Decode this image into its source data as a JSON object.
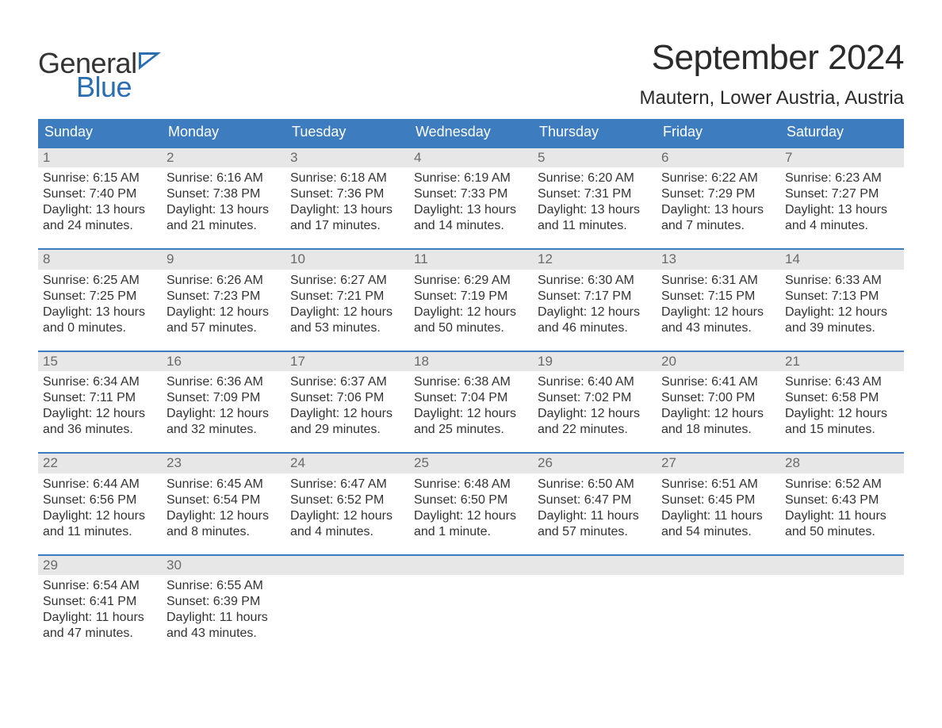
{
  "logo": {
    "word1": "General",
    "word2": "Blue",
    "icon_color": "#2a6db3"
  },
  "title": "September 2024",
  "location": "Mautern, Lower Austria, Austria",
  "colors": {
    "header_bg": "#3d7cbf",
    "header_text": "#ffffff",
    "daynum_bg": "#e7e7e7",
    "daynum_text": "#6a6a6a",
    "row_border": "#3d7cbf",
    "body_text": "#333333"
  },
  "weekdays": [
    "Sunday",
    "Monday",
    "Tuesday",
    "Wednesday",
    "Thursday",
    "Friday",
    "Saturday"
  ],
  "first_weekday_offset": 0,
  "days": [
    {
      "n": 1,
      "sunrise": "6:15 AM",
      "sunset": "7:40 PM",
      "daylight": "13 hours and 24 minutes."
    },
    {
      "n": 2,
      "sunrise": "6:16 AM",
      "sunset": "7:38 PM",
      "daylight": "13 hours and 21 minutes."
    },
    {
      "n": 3,
      "sunrise": "6:18 AM",
      "sunset": "7:36 PM",
      "daylight": "13 hours and 17 minutes."
    },
    {
      "n": 4,
      "sunrise": "6:19 AM",
      "sunset": "7:33 PM",
      "daylight": "13 hours and 14 minutes."
    },
    {
      "n": 5,
      "sunrise": "6:20 AM",
      "sunset": "7:31 PM",
      "daylight": "13 hours and 11 minutes."
    },
    {
      "n": 6,
      "sunrise": "6:22 AM",
      "sunset": "7:29 PM",
      "daylight": "13 hours and 7 minutes."
    },
    {
      "n": 7,
      "sunrise": "6:23 AM",
      "sunset": "7:27 PM",
      "daylight": "13 hours and 4 minutes."
    },
    {
      "n": 8,
      "sunrise": "6:25 AM",
      "sunset": "7:25 PM",
      "daylight": "13 hours and 0 minutes."
    },
    {
      "n": 9,
      "sunrise": "6:26 AM",
      "sunset": "7:23 PM",
      "daylight": "12 hours and 57 minutes."
    },
    {
      "n": 10,
      "sunrise": "6:27 AM",
      "sunset": "7:21 PM",
      "daylight": "12 hours and 53 minutes."
    },
    {
      "n": 11,
      "sunrise": "6:29 AM",
      "sunset": "7:19 PM",
      "daylight": "12 hours and 50 minutes."
    },
    {
      "n": 12,
      "sunrise": "6:30 AM",
      "sunset": "7:17 PM",
      "daylight": "12 hours and 46 minutes."
    },
    {
      "n": 13,
      "sunrise": "6:31 AM",
      "sunset": "7:15 PM",
      "daylight": "12 hours and 43 minutes."
    },
    {
      "n": 14,
      "sunrise": "6:33 AM",
      "sunset": "7:13 PM",
      "daylight": "12 hours and 39 minutes."
    },
    {
      "n": 15,
      "sunrise": "6:34 AM",
      "sunset": "7:11 PM",
      "daylight": "12 hours and 36 minutes."
    },
    {
      "n": 16,
      "sunrise": "6:36 AM",
      "sunset": "7:09 PM",
      "daylight": "12 hours and 32 minutes."
    },
    {
      "n": 17,
      "sunrise": "6:37 AM",
      "sunset": "7:06 PM",
      "daylight": "12 hours and 29 minutes."
    },
    {
      "n": 18,
      "sunrise": "6:38 AM",
      "sunset": "7:04 PM",
      "daylight": "12 hours and 25 minutes."
    },
    {
      "n": 19,
      "sunrise": "6:40 AM",
      "sunset": "7:02 PM",
      "daylight": "12 hours and 22 minutes."
    },
    {
      "n": 20,
      "sunrise": "6:41 AM",
      "sunset": "7:00 PM",
      "daylight": "12 hours and 18 minutes."
    },
    {
      "n": 21,
      "sunrise": "6:43 AM",
      "sunset": "6:58 PM",
      "daylight": "12 hours and 15 minutes."
    },
    {
      "n": 22,
      "sunrise": "6:44 AM",
      "sunset": "6:56 PM",
      "daylight": "12 hours and 11 minutes."
    },
    {
      "n": 23,
      "sunrise": "6:45 AM",
      "sunset": "6:54 PM",
      "daylight": "12 hours and 8 minutes."
    },
    {
      "n": 24,
      "sunrise": "6:47 AM",
      "sunset": "6:52 PM",
      "daylight": "12 hours and 4 minutes."
    },
    {
      "n": 25,
      "sunrise": "6:48 AM",
      "sunset": "6:50 PM",
      "daylight": "12 hours and 1 minute."
    },
    {
      "n": 26,
      "sunrise": "6:50 AM",
      "sunset": "6:47 PM",
      "daylight": "11 hours and 57 minutes."
    },
    {
      "n": 27,
      "sunrise": "6:51 AM",
      "sunset": "6:45 PM",
      "daylight": "11 hours and 54 minutes."
    },
    {
      "n": 28,
      "sunrise": "6:52 AM",
      "sunset": "6:43 PM",
      "daylight": "11 hours and 50 minutes."
    },
    {
      "n": 29,
      "sunrise": "6:54 AM",
      "sunset": "6:41 PM",
      "daylight": "11 hours and 47 minutes."
    },
    {
      "n": 30,
      "sunrise": "6:55 AM",
      "sunset": "6:39 PM",
      "daylight": "11 hours and 43 minutes."
    }
  ],
  "labels": {
    "sunrise": "Sunrise:",
    "sunset": "Sunset:",
    "daylight": "Daylight:"
  }
}
